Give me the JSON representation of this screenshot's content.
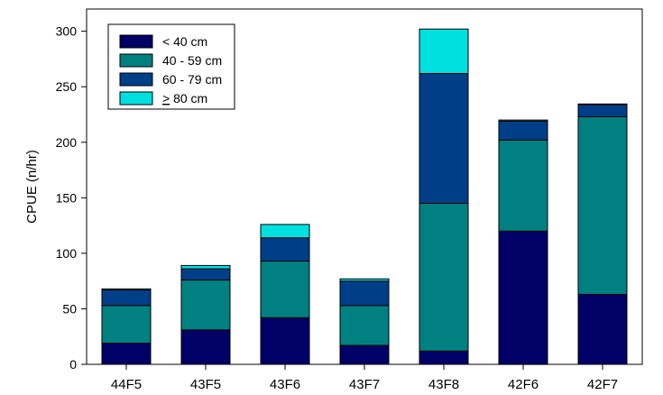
{
  "chart_data": {
    "type": "bar",
    "stacked": true,
    "categories": [
      "44F5",
      "43F5",
      "43F6",
      "43F7",
      "43F8",
      "42F6",
      "42F7"
    ],
    "series": [
      {
        "name": "< 40 cm",
        "color": "#000066",
        "values": [
          19,
          31,
          42,
          17,
          12,
          120,
          63
        ]
      },
      {
        "name": "40 - 59 cm",
        "color": "#008080",
        "values": [
          34,
          45,
          51,
          36,
          133,
          82,
          160
        ]
      },
      {
        "name": "60 - 79 cm",
        "color": "#003F87",
        "values": [
          14,
          10,
          21,
          22,
          117,
          17,
          11
        ]
      },
      {
        "name": "> 80 cm",
        "name_prefix": "",
        "name_underlined": ">",
        "name_rest": " 80 cm",
        "color": "#00E0E0",
        "values": [
          1,
          3,
          12,
          2,
          40,
          1,
          0.5
        ]
      }
    ],
    "title": "",
    "xlabel": "",
    "ylabel": "CPUE (n/hr)",
    "ylim": [
      0,
      320
    ],
    "yticks": [
      0,
      50,
      100,
      150,
      200,
      250,
      300
    ],
    "grid": false,
    "legend_position": "top-left"
  }
}
